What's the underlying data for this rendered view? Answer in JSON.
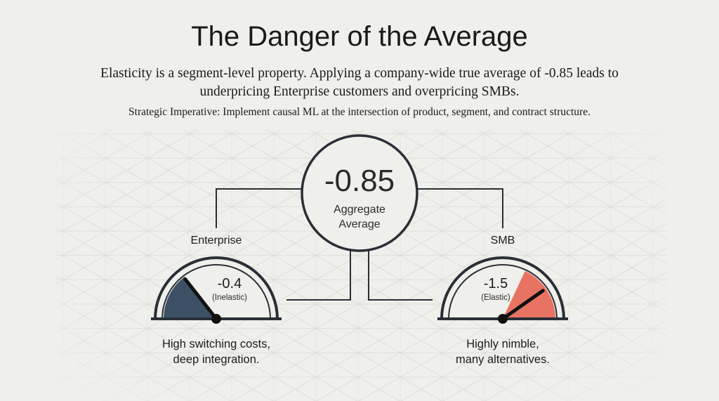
{
  "title": "The Danger of the Average",
  "subtitle_line1": "Elasticity is a segment-level property. Applying a company-wide true average of -0.85 leads to",
  "subtitle_line2": "underpricing Enterprise customers and overpricing SMBs.",
  "imperative": "Strategic Imperative: Implement causal ML at the intersection of product, segment, and contract structure.",
  "center": {
    "value": "-0.85",
    "label_line1": "Aggregate",
    "label_line2": "Average"
  },
  "enterprise": {
    "label": "Enterprise",
    "value": "-0.4",
    "classification": "(Inelastic)",
    "desc_line1": "High switching costs,",
    "desc_line2": "deep integration.",
    "fill_color": "#3d5166"
  },
  "smb": {
    "label": "SMB",
    "value": "-1.5",
    "classification": "(Elastic)",
    "desc_line1": "Highly nimble,",
    "desc_line2": "many alternatives.",
    "fill_color": "#e87362"
  },
  "colors": {
    "stroke": "#2a2f36",
    "background": "#efefeb"
  }
}
